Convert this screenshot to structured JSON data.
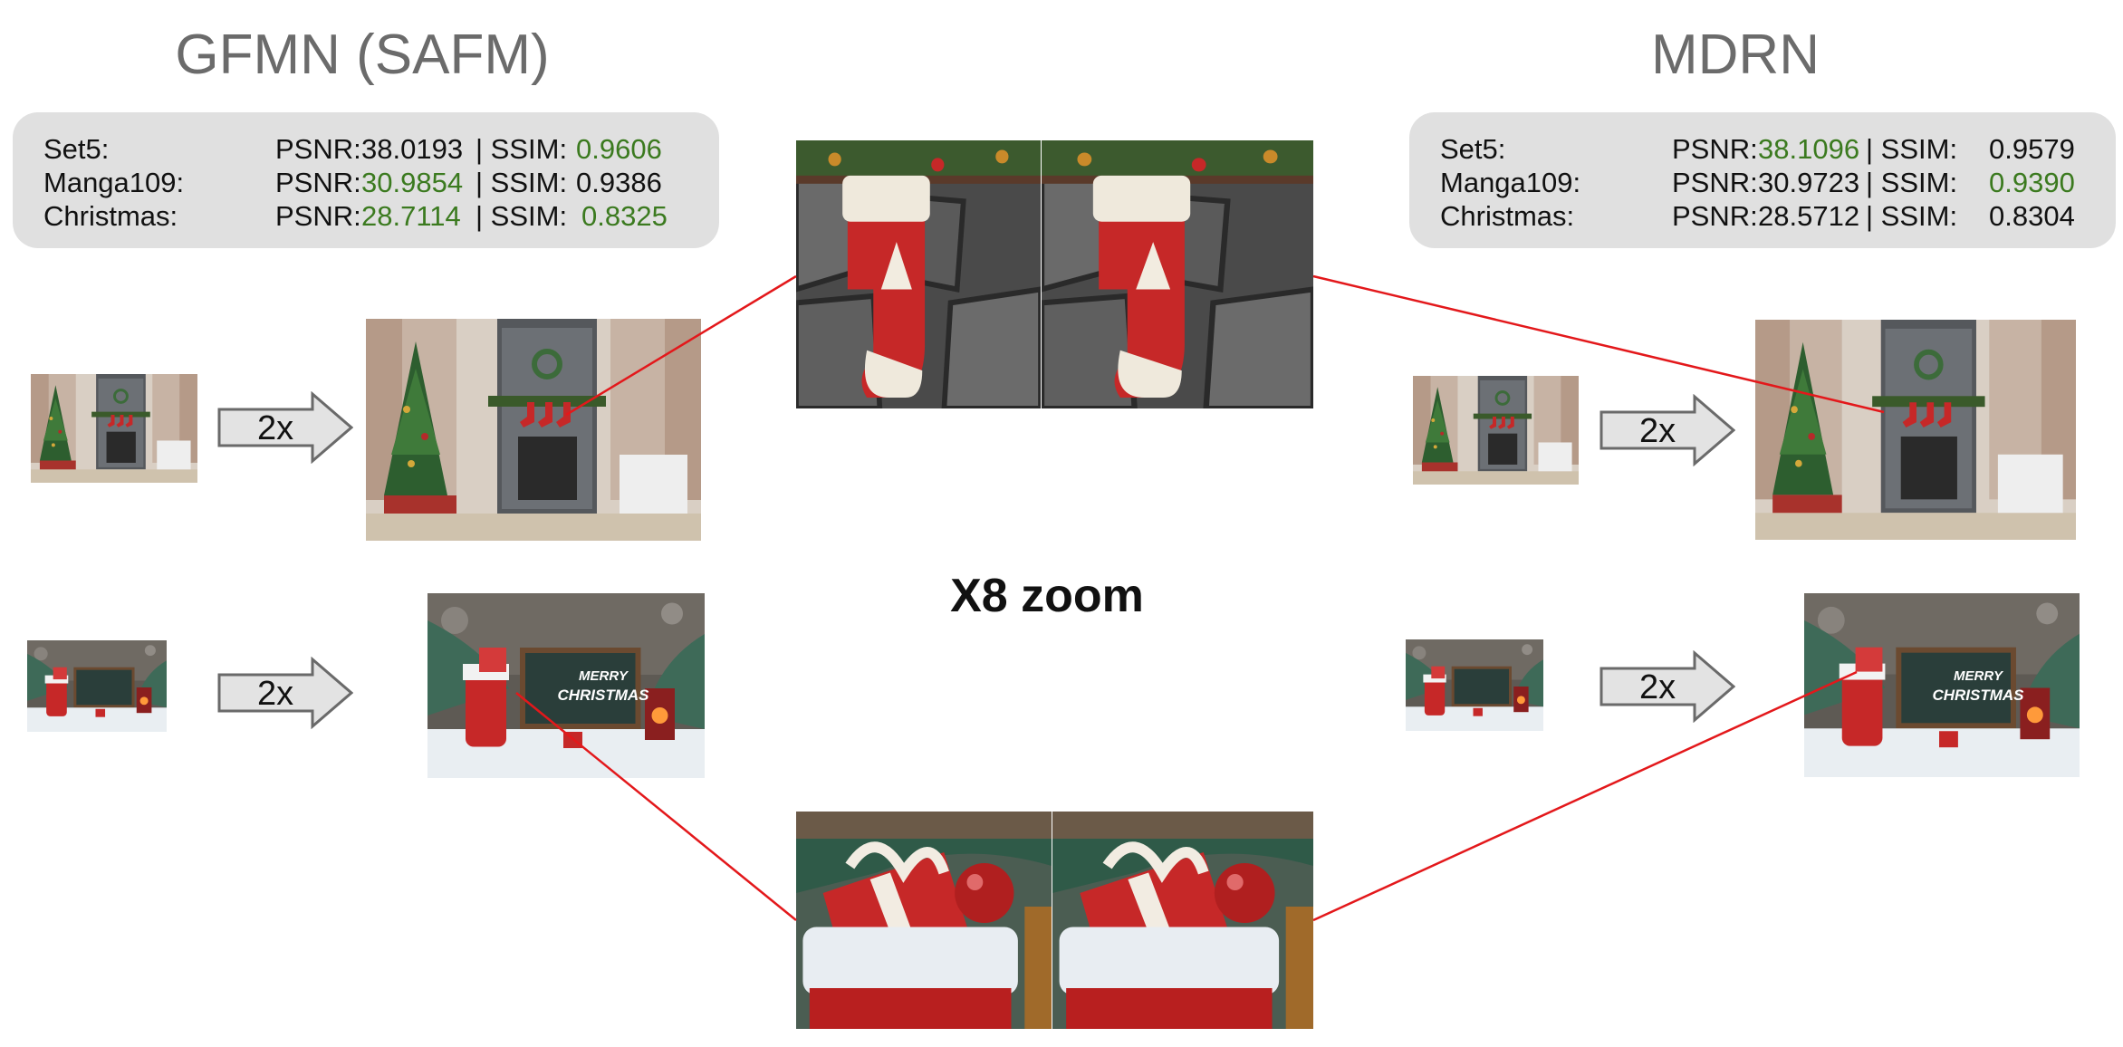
{
  "left": {
    "title": "GFMN (SAFM)",
    "metrics": [
      {
        "dataset": "Set5:",
        "psnr_label": "PSNR: ",
        "psnr": "38.0193",
        "psnr_green": false,
        "sep": "| SSIM:",
        "ssim": "0.9606",
        "ssim_green": true
      },
      {
        "dataset": "Manga109:",
        "psnr_label": "PSNR: ",
        "psnr": "30.9854",
        "psnr_green": true,
        "sep": "| SSIM:",
        "ssim": "0.9386",
        "ssim_green": false
      },
      {
        "dataset": "Christmas:",
        "psnr_label": "PSNR: ",
        "psnr": "28.7114",
        "psnr_green": true,
        "sep": "| SSIM:",
        "ssim": "0.8325",
        "ssim_green": true
      }
    ],
    "arrow_top": "2x",
    "arrow_bottom": "2x"
  },
  "right": {
    "title": "MDRN",
    "metrics": [
      {
        "dataset": "Set5:",
        "psnr_label": "PSNR: ",
        "psnr": "38.1096",
        "psnr_green": true,
        "sep": "| SSIM:",
        "ssim": "0.9579",
        "ssim_green": false
      },
      {
        "dataset": "Manga109:",
        "psnr_label": "PSNR: ",
        "psnr": "30.9723",
        "psnr_green": false,
        "sep": "| SSIM:",
        "ssim": "0.9390",
        "ssim_green": true
      },
      {
        "dataset": "Christmas:",
        "psnr_label": "PSNR: ",
        "psnr": "28.5712",
        "psnr_green": false,
        "sep": "| SSIM:",
        "ssim": "0.8304",
        "ssim_green": false
      }
    ],
    "arrow_top": "2x",
    "arrow_bottom": "2x"
  },
  "center": {
    "zoom_label": "X8 zoom",
    "card_text_line1": "MERRY",
    "card_text_line2": "CHRISTMAS"
  },
  "colors": {
    "green": "#3b7a1f",
    "connector": "#e3181b",
    "box": "#e0e0e0"
  }
}
